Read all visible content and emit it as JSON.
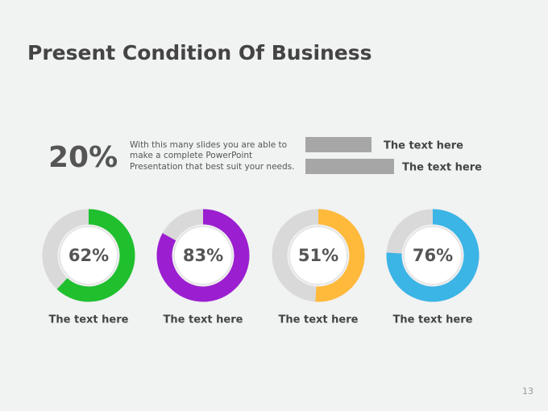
{
  "title": "Present Condition Of Business",
  "highlight": {
    "label": "20%",
    "lines": [
      "With this many slides you are able to",
      "make a complete PowerPoint",
      "Presentation that best suit your needs."
    ]
  },
  "legend": [
    "The text here",
    "The text here"
  ],
  "chart_data": [
    {
      "type": "donut",
      "values": [
        62
      ],
      "value_labels": [
        "62%"
      ],
      "color": "#1fbf2e",
      "caption": "The text here"
    },
    {
      "type": "donut",
      "values": [
        83
      ],
      "value_labels": [
        "83%"
      ],
      "color": "#9b1ed0",
      "caption": "The text here"
    },
    {
      "type": "donut",
      "values": [
        51
      ],
      "value_labels": [
        "51%"
      ],
      "color": "#ffb93b",
      "caption": "The text here"
    },
    {
      "type": "donut",
      "values": [
        76
      ],
      "value_labels": [
        "76%"
      ],
      "color": "#3bb4e6",
      "caption": "The text here"
    }
  ],
  "page_number": "13"
}
